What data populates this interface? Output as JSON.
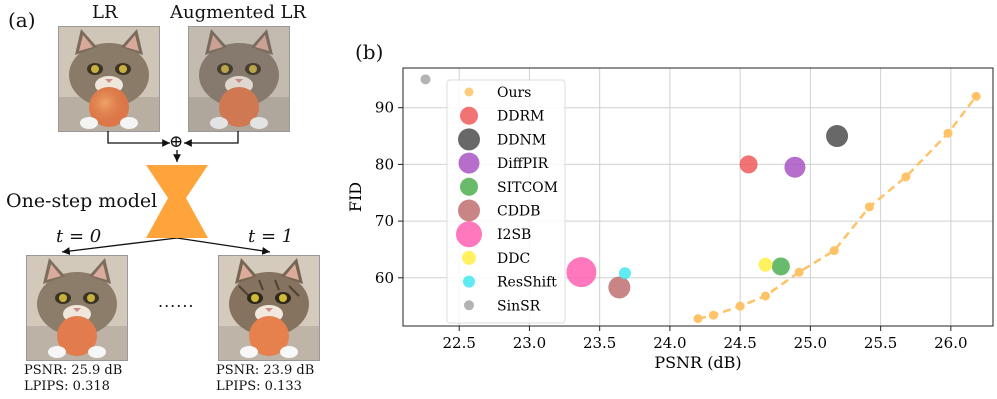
{
  "left_panel": {
    "label": "(a)",
    "lr_title": "LR",
    "aug_title": "Augmented LR",
    "plus_symbol": "⊕",
    "model_label": "One-step model",
    "t0_label": "t = 0",
    "t1_label": "t = 1",
    "ellipsis": "......",
    "out0": {
      "psnr": "PSNR: 25.9 dB",
      "lpips": "LPIPS: 0.318"
    },
    "out1": {
      "psnr": "PSNR: 23.9 dB",
      "lpips": "LPIPS: 0.133"
    },
    "model_color": "#FFA43A"
  },
  "right_panel": {
    "label": "(b)"
  },
  "chart_data": {
    "type": "scatter",
    "xlabel": "PSNR (dB)",
    "ylabel": "FID",
    "xlim": [
      22.1,
      26.3
    ],
    "ylim": [
      51.5,
      97
    ],
    "xticks": [
      22.5,
      23.0,
      23.5,
      24.0,
      24.5,
      25.0,
      25.5,
      26.0
    ],
    "yticks": [
      60,
      70,
      80,
      90
    ],
    "grid": true,
    "legend_position": "top-left",
    "series": [
      {
        "name": "Ours",
        "color": "#FFC266",
        "style": "dashed-line-with-markers",
        "points": [
          [
            24.2,
            52.8
          ],
          [
            24.31,
            53.4
          ],
          [
            24.5,
            55.0
          ],
          [
            24.68,
            56.8
          ],
          [
            24.92,
            61.0
          ],
          [
            25.17,
            64.8
          ],
          [
            25.42,
            72.5
          ],
          [
            25.68,
            77.8
          ],
          [
            25.98,
            85.5
          ],
          [
            26.18,
            92.0
          ]
        ]
      },
      {
        "name": "DDRM",
        "color": "#F05A5A",
        "points": [
          [
            24.56,
            80.0
          ]
        ]
      },
      {
        "name": "DDNM",
        "color": "#4D4D4D",
        "points": [
          [
            25.19,
            85.0
          ]
        ]
      },
      {
        "name": "DiffPIR",
        "color": "#A855C2",
        "points": [
          [
            24.89,
            79.5
          ]
        ]
      },
      {
        "name": "SITCOM",
        "color": "#4CAF50",
        "points": [
          [
            24.79,
            62.0
          ]
        ]
      },
      {
        "name": "CDDB",
        "color": "#C07070",
        "points": [
          [
            23.64,
            58.3
          ]
        ]
      },
      {
        "name": "I2SB",
        "color": "#FF5FB0",
        "points": [
          [
            23.37,
            61.0
          ]
        ]
      },
      {
        "name": "DDC",
        "color": "#FFEE44",
        "points": [
          [
            24.68,
            62.3
          ]
        ]
      },
      {
        "name": "ResShift",
        "color": "#44E6EE",
        "points": [
          [
            23.68,
            60.8
          ]
        ]
      },
      {
        "name": "SinSR",
        "color": "#A6A6A6",
        "points": [
          [
            22.26,
            95.0
          ]
        ]
      }
    ]
  }
}
